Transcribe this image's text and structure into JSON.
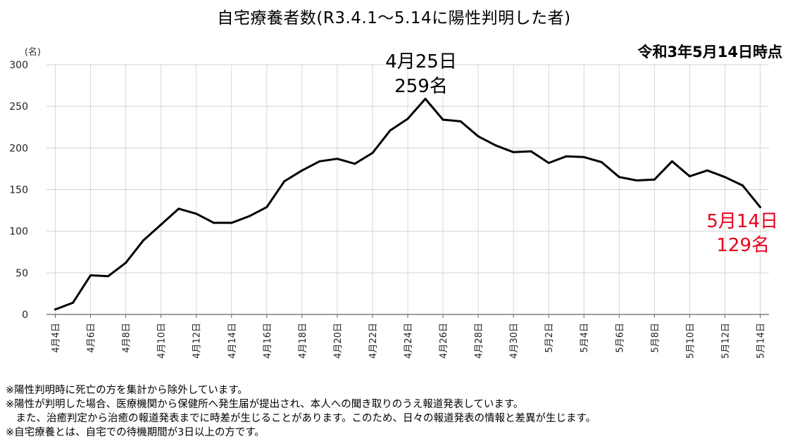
{
  "chart_data": {
    "type": "line",
    "title": "自宅療養者数(R3.4.1～5.14に陽性判明した者)",
    "subtitle": "令和3年5月14日時点",
    "ylabel": "(名)",
    "xlabel": "",
    "ylim": [
      0,
      300
    ],
    "y_ticks": [
      0,
      50,
      100,
      150,
      200,
      250,
      300
    ],
    "grid": true,
    "line_color": "#000000",
    "x": [
      "4月4日",
      "4月5日",
      "4月6日",
      "4月7日",
      "4月8日",
      "4月9日",
      "4月10日",
      "4月11日",
      "4月12日",
      "4月13日",
      "4月14日",
      "4月15日",
      "4月16日",
      "4月17日",
      "4月18日",
      "4月19日",
      "4月20日",
      "4月21日",
      "4月22日",
      "4月23日",
      "4月24日",
      "4月25日",
      "4月26日",
      "4月27日",
      "4月28日",
      "4月29日",
      "4月30日",
      "5月1日",
      "5月2日",
      "5月3日",
      "5月4日",
      "5月5日",
      "5月6日",
      "5月7日",
      "5月8日",
      "5月9日",
      "5月10日",
      "5月11日",
      "5月12日",
      "5月13日",
      "5月14日"
    ],
    "x_tick_labels": [
      "4月4日",
      "4月6日",
      "4月8日",
      "4月10日",
      "4月12日",
      "4月14日",
      "4月16日",
      "4月18日",
      "4月20日",
      "4月22日",
      "4月24日",
      "4月26日",
      "4月28日",
      "4月30日",
      "5月2日",
      "5月4日",
      "5月6日",
      "5月8日",
      "5月10日",
      "5月12日",
      "5月14日"
    ],
    "values": [
      6,
      14,
      47,
      46,
      62,
      89,
      108,
      127,
      121,
      110,
      110,
      118,
      129,
      160,
      173,
      184,
      187,
      181,
      194,
      221,
      235,
      259,
      234,
      232,
      214,
      203,
      195,
      196,
      182,
      190,
      189,
      183,
      165,
      161,
      162,
      184,
      166,
      173,
      165,
      155,
      129
    ],
    "annotations": [
      {
        "text_line1": "4月25日",
        "text_line2": "259名",
        "x": "4月25日",
        "y": 259,
        "color": "#000000"
      },
      {
        "text_line1": "5月14日",
        "text_line2": "129名",
        "x": "5月14日",
        "y": 129,
        "color": "#e8001c"
      }
    ]
  },
  "footnotes": [
    "※陽性判明時に死亡の方を集計から除外しています。",
    "※陽性が判明した場合、医療機関から保健所へ発生届が提出され、本人への聞き取りのうえ報道発表しています。",
    "　また、治癒判定から治癒の報道発表までに時差が生じることがあります。このため、日々の報道発表の情報と差異が生じます。",
    "※自宅療養とは、自宅での待機期間が3日以上の方です。"
  ]
}
